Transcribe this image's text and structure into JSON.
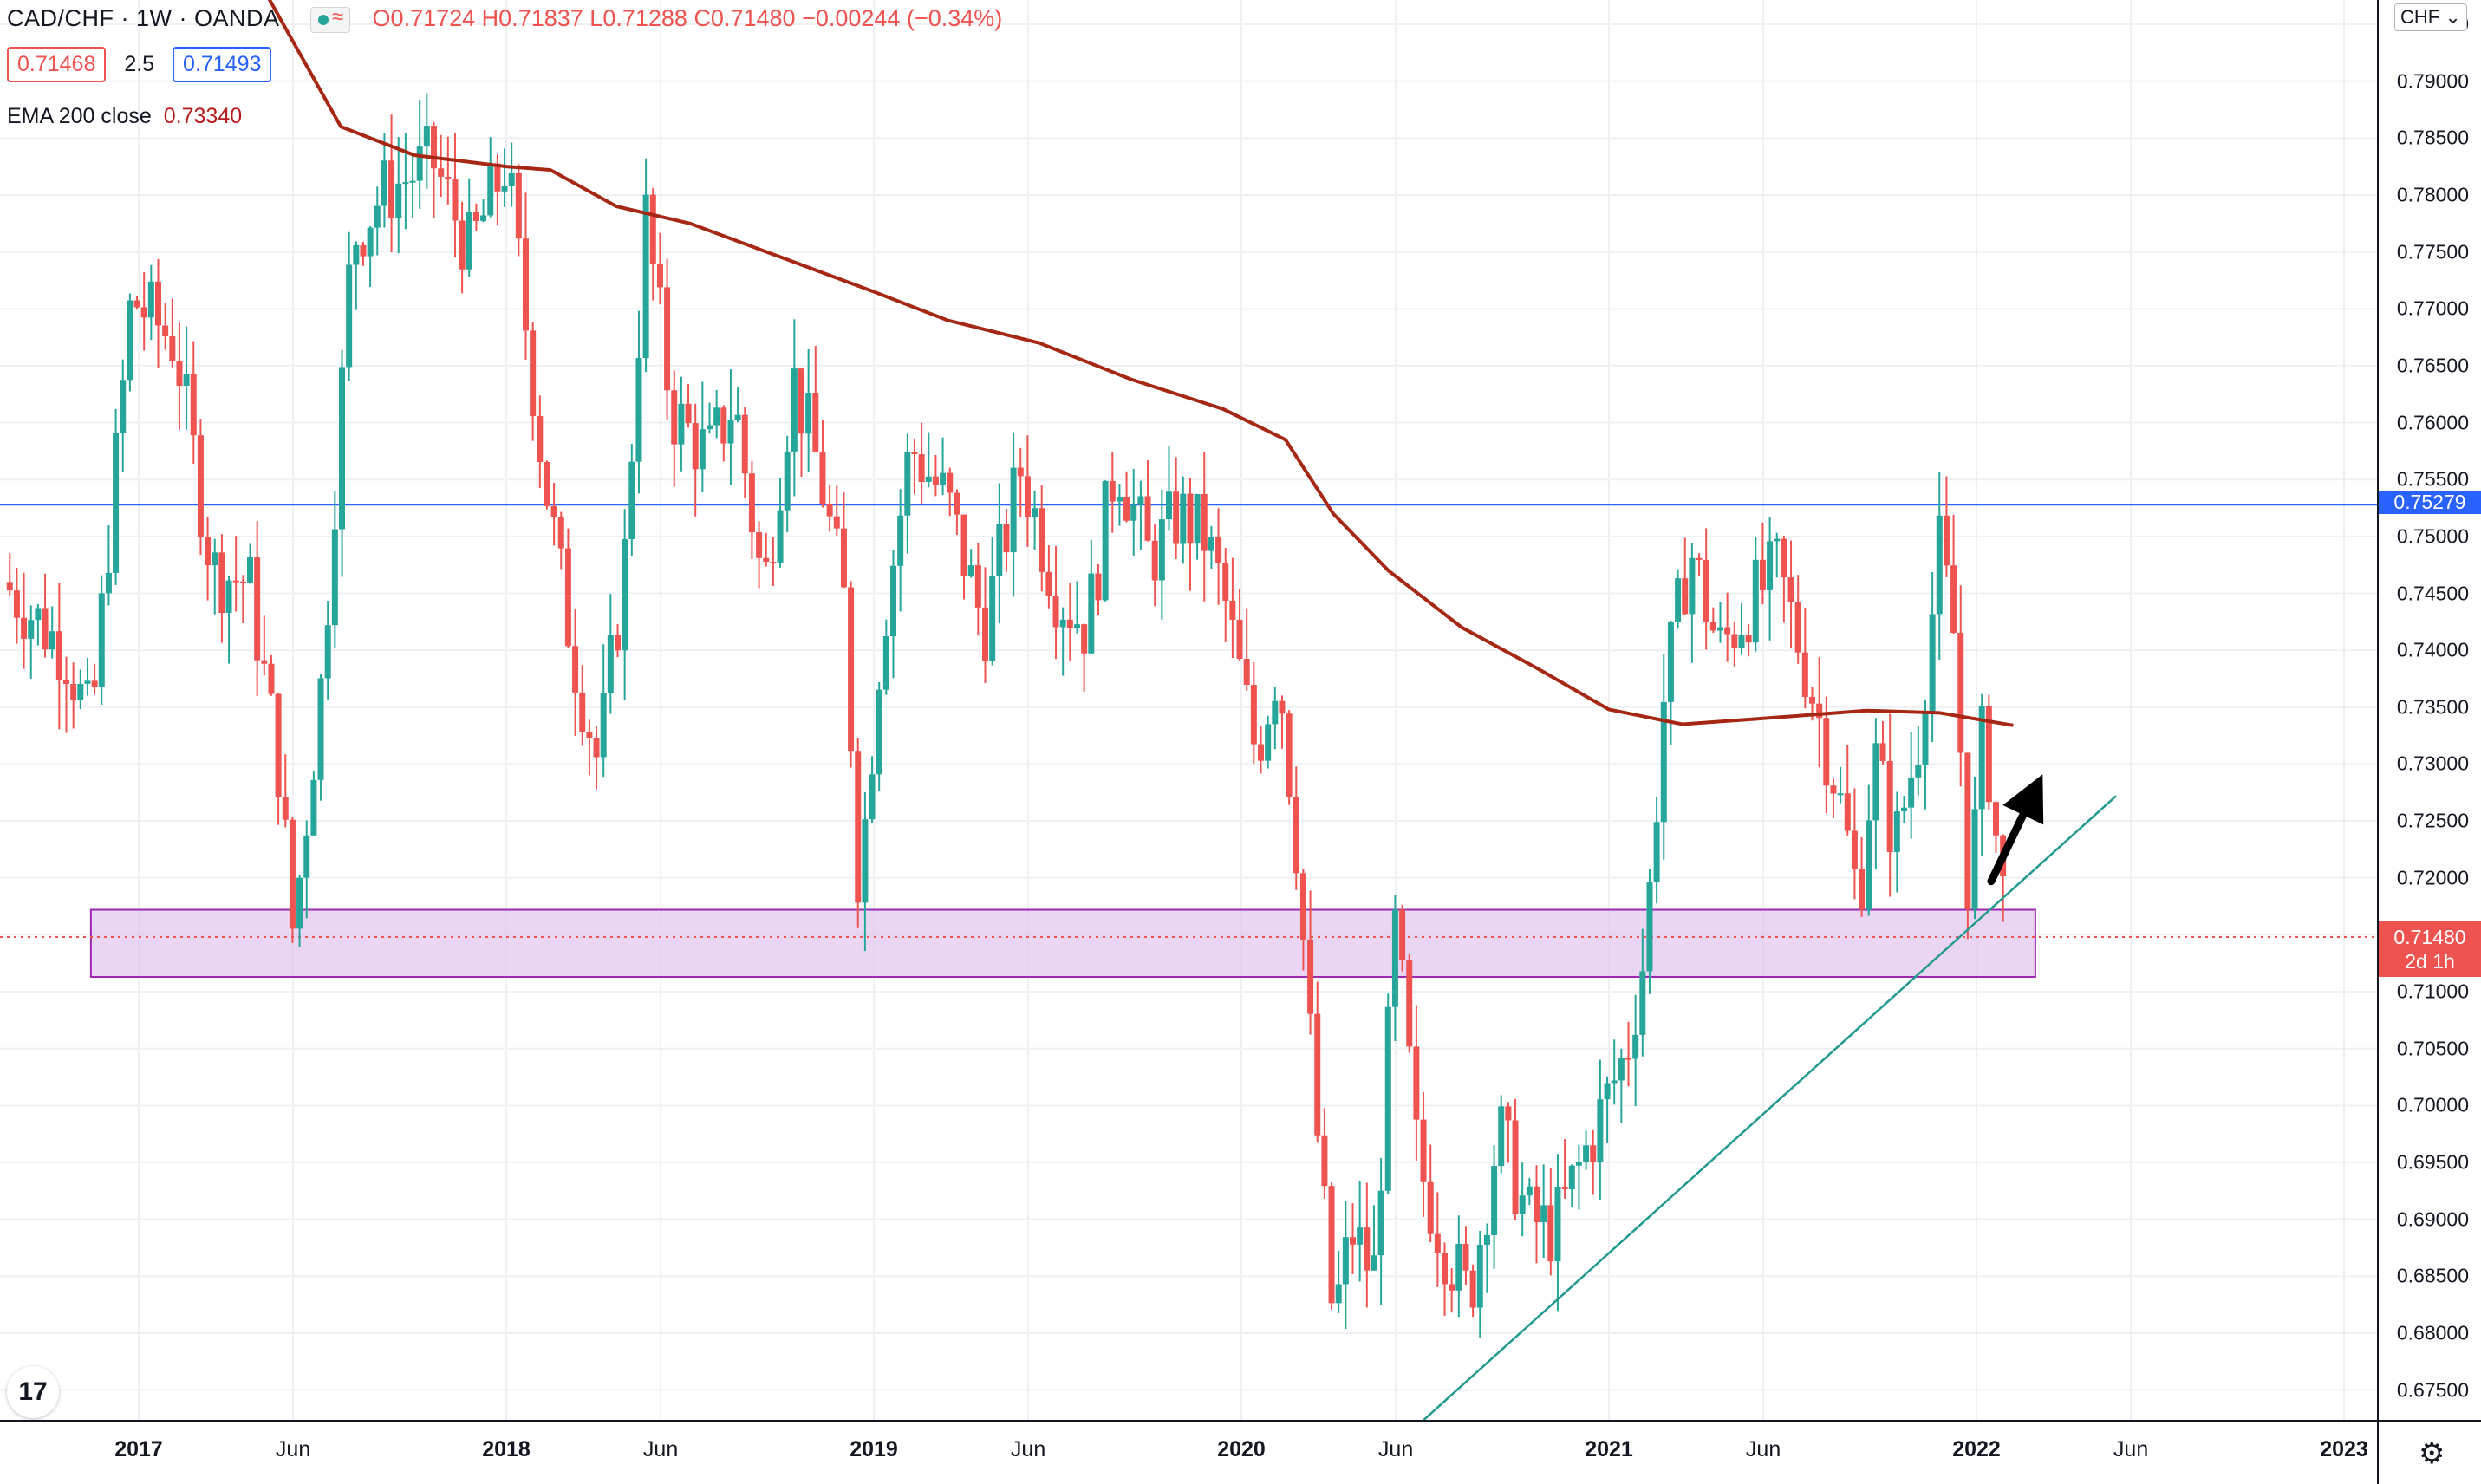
{
  "legend": {
    "symbol": "CAD/CHF · 1W · OANDA",
    "open": "O0.71724",
    "high": "H0.71837",
    "low": "L0.71288",
    "close": "C0.71480",
    "change": "−0.00244 (−0.34%)",
    "sell_price": "0.71468",
    "spread": "2.5",
    "buy_price": "0.71493",
    "ema_label": "EMA 200 close",
    "ema_value": "0.73340"
  },
  "axis": {
    "currency": "CHF",
    "price_ticks": [
      "0.79500",
      "0.79000",
      "0.78500",
      "0.78000",
      "0.77500",
      "0.77000",
      "0.76500",
      "0.76000",
      "0.75500",
      "0.75000",
      "0.74500",
      "0.74000",
      "0.73500",
      "0.73000",
      "0.72500",
      "0.72000",
      "0.71500",
      "0.71000",
      "0.70500",
      "0.70000",
      "0.69500",
      "0.69000",
      "0.68500",
      "0.68000",
      "0.67500"
    ],
    "time_ticks": [
      {
        "label": "2017",
        "year": true,
        "t": 2017.0
      },
      {
        "label": "Jun",
        "year": false,
        "t": 2017.42
      },
      {
        "label": "2018",
        "year": true,
        "t": 2018.0
      },
      {
        "label": "Jun",
        "year": false,
        "t": 2018.42
      },
      {
        "label": "2019",
        "year": true,
        "t": 2019.0
      },
      {
        "label": "Jun",
        "year": false,
        "t": 2019.42
      },
      {
        "label": "2020",
        "year": true,
        "t": 2020.0
      },
      {
        "label": "Jun",
        "year": false,
        "t": 2020.42
      },
      {
        "label": "2021",
        "year": true,
        "t": 2021.0
      },
      {
        "label": "Jun",
        "year": false,
        "t": 2021.42
      },
      {
        "label": "2022",
        "year": true,
        "t": 2022.0
      },
      {
        "label": "Jun",
        "year": false,
        "t": 2022.42
      },
      {
        "label": "2023",
        "year": true,
        "t": 2023.0
      }
    ],
    "horizontal_level_tag": "0.75279",
    "last_price_tag": "0.71480",
    "countdown_tag": "2d 1h"
  },
  "colors": {
    "up": "#26a69a",
    "down": "#ef5350",
    "ema": "#a52714",
    "level_line": "#2962ff",
    "zone_fill": "#e1c4ec",
    "zone_border": "#9c27b0",
    "trendline": "#22998f",
    "arrow": "#000000"
  },
  "icons": {
    "logo": "tradingview-logo-icon",
    "settings": "gear-icon"
  },
  "chart_data": {
    "type": "candlestick",
    "timeframe": "1W",
    "ylim": [
      0.6725,
      0.7975
    ],
    "xlim": [
      2016.63,
      2023.01
    ],
    "horizontal_level": 0.75279,
    "last_price": 0.7148,
    "support_zone": {
      "t_start": 2016.87,
      "t_end": 2022.16,
      "price_low": 0.7113,
      "price_high": 0.7172
    },
    "trendline": {
      "t1": 2020.48,
      "p1": 0.6719,
      "t2": 2022.38,
      "p2": 0.7272
    },
    "arrow": {
      "t1": 2022.04,
      "p1": 0.7197,
      "t2": 2022.18,
      "p2": 0.7291
    },
    "ema200_points": [
      [
        2017.35,
        0.7975
      ],
      [
        2017.55,
        0.786
      ],
      [
        2017.75,
        0.7835
      ],
      [
        2018.0,
        0.7825
      ],
      [
        2018.12,
        0.7822
      ],
      [
        2018.3,
        0.779
      ],
      [
        2018.5,
        0.7775
      ],
      [
        2018.75,
        0.7745
      ],
      [
        2019.0,
        0.7715
      ],
      [
        2019.2,
        0.769
      ],
      [
        2019.45,
        0.767
      ],
      [
        2019.7,
        0.7638
      ],
      [
        2019.95,
        0.7612
      ],
      [
        2020.12,
        0.7585
      ],
      [
        2020.25,
        0.752
      ],
      [
        2020.4,
        0.747
      ],
      [
        2020.6,
        0.742
      ],
      [
        2020.8,
        0.7385
      ],
      [
        2021.0,
        0.7348
      ],
      [
        2021.2,
        0.7335
      ],
      [
        2021.5,
        0.7342
      ],
      [
        2021.7,
        0.7347
      ],
      [
        2021.9,
        0.7345
      ],
      [
        2022.1,
        0.7334
      ]
    ],
    "key_closes": [
      [
        2016.63,
        0.746
      ],
      [
        2016.8,
        0.74
      ],
      [
        2016.87,
        0.733
      ],
      [
        2016.98,
        0.771
      ],
      [
        2017.1,
        0.767
      ],
      [
        2017.2,
        0.747
      ],
      [
        2017.3,
        0.746
      ],
      [
        2017.38,
        0.73
      ],
      [
        2017.42,
        0.715
      ],
      [
        2017.5,
        0.738
      ],
      [
        2017.58,
        0.776
      ],
      [
        2017.66,
        0.78
      ],
      [
        2017.8,
        0.783
      ],
      [
        2017.9,
        0.775
      ],
      [
        2018.0,
        0.783
      ],
      [
        2018.1,
        0.756
      ],
      [
        2018.18,
        0.74
      ],
      [
        2018.25,
        0.73
      ],
      [
        2018.32,
        0.747
      ],
      [
        2018.38,
        0.778
      ],
      [
        2018.45,
        0.761
      ],
      [
        2018.55,
        0.757
      ],
      [
        2018.62,
        0.762
      ],
      [
        2018.7,
        0.745
      ],
      [
        2018.78,
        0.764
      ],
      [
        2018.85,
        0.756
      ],
      [
        2018.92,
        0.744
      ],
      [
        2018.96,
        0.719
      ],
      [
        2019.02,
        0.741
      ],
      [
        2019.1,
        0.758
      ],
      [
        2019.2,
        0.753
      ],
      [
        2019.3,
        0.742
      ],
      [
        2019.4,
        0.756
      ],
      [
        2019.5,
        0.745
      ],
      [
        2019.58,
        0.742
      ],
      [
        2019.66,
        0.757
      ],
      [
        2019.75,
        0.748
      ],
      [
        2019.83,
        0.752
      ],
      [
        2019.9,
        0.75
      ],
      [
        2019.95,
        0.745
      ],
      [
        2020.04,
        0.731
      ],
      [
        2020.1,
        0.739
      ],
      [
        2020.15,
        0.723
      ],
      [
        2020.2,
        0.7
      ],
      [
        2020.25,
        0.681
      ],
      [
        2020.3,
        0.689
      ],
      [
        2020.36,
        0.685
      ],
      [
        2020.42,
        0.716
      ],
      [
        2020.48,
        0.695
      ],
      [
        2020.55,
        0.688
      ],
      [
        2020.62,
        0.683
      ],
      [
        2020.7,
        0.698
      ],
      [
        2020.78,
        0.69
      ],
      [
        2020.85,
        0.689
      ],
      [
        2020.95,
        0.697
      ],
      [
        2021.05,
        0.705
      ],
      [
        2021.1,
        0.714
      ],
      [
        2021.15,
        0.736
      ],
      [
        2021.22,
        0.749
      ],
      [
        2021.3,
        0.74
      ],
      [
        2021.38,
        0.744
      ],
      [
        2021.46,
        0.747
      ],
      [
        2021.54,
        0.738
      ],
      [
        2021.62,
        0.728
      ],
      [
        2021.68,
        0.718
      ],
      [
        2021.72,
        0.731
      ],
      [
        2021.78,
        0.723
      ],
      [
        2021.84,
        0.732
      ],
      [
        2021.9,
        0.749
      ],
      [
        2021.94,
        0.741
      ],
      [
        2021.98,
        0.718
      ],
      [
        2022.02,
        0.734
      ],
      [
        2022.06,
        0.7215
      ],
      [
        2022.09,
        0.7148
      ]
    ]
  }
}
